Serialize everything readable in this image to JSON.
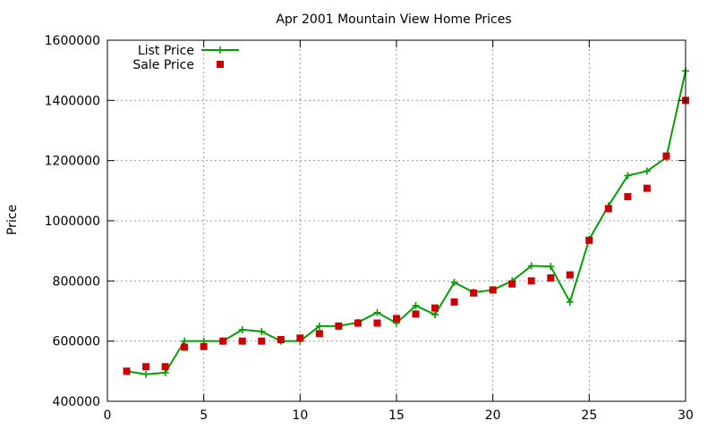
{
  "chart_data": {
    "type": "line",
    "title": "Apr 2001 Mountain View Home Prices",
    "xlabel": "",
    "ylabel": "Price",
    "xlim": [
      0,
      30
    ],
    "ylim": [
      400000,
      1600000
    ],
    "x_ticks": [
      0,
      5,
      10,
      15,
      20,
      25,
      30
    ],
    "y_ticks": [
      400000,
      600000,
      800000,
      1000000,
      1200000,
      1400000,
      1600000
    ],
    "grid": true,
    "legend_position": "top-left",
    "series": [
      {
        "name": "List Price",
        "style": "lines+points",
        "marker": "plus",
        "color": "#00a000",
        "x": [
          1,
          2,
          3,
          4,
          5,
          6,
          7,
          8,
          9,
          10,
          11,
          12,
          13,
          14,
          15,
          16,
          17,
          18,
          19,
          20,
          21,
          22,
          23,
          24,
          25,
          26,
          27,
          28,
          29,
          30
        ],
        "values": [
          500000,
          490000,
          495000,
          600000,
          600000,
          600000,
          638000,
          632000,
          600000,
          600000,
          650000,
          650000,
          662000,
          695000,
          660000,
          718000,
          688000,
          795000,
          762000,
          770000,
          800000,
          850000,
          848000,
          730000,
          938000,
          1050000,
          1150000,
          1165000,
          1210000,
          1498000
        ]
      },
      {
        "name": "Sale Price",
        "style": "points",
        "marker": "filled-square",
        "color": "#cc0000",
        "x": [
          1,
          2,
          3,
          4,
          5,
          6,
          7,
          8,
          9,
          10,
          11,
          12,
          13,
          14,
          15,
          16,
          17,
          18,
          19,
          20,
          21,
          22,
          23,
          24,
          25,
          26,
          27,
          28,
          29,
          30
        ],
        "values": [
          500000,
          515000,
          515000,
          580000,
          582000,
          600000,
          600000,
          600000,
          605000,
          610000,
          625000,
          650000,
          660000,
          660000,
          675000,
          690000,
          710000,
          730000,
          760000,
          770000,
          790000,
          800000,
          810000,
          820000,
          935000,
          1040000,
          1080000,
          1108000,
          1215000,
          1400000
        ]
      }
    ]
  }
}
